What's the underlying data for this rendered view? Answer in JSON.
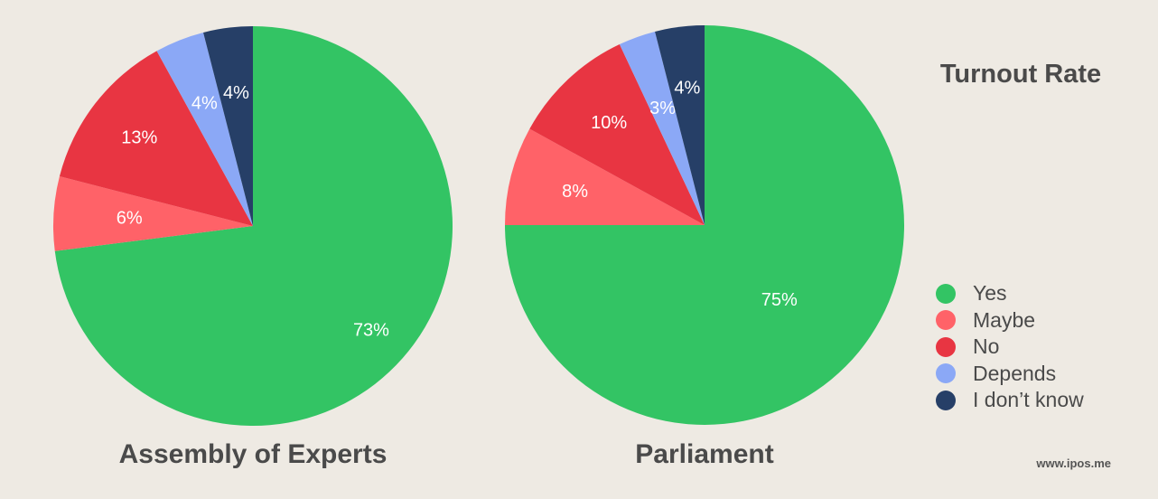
{
  "title": "Turnout Rate",
  "source": "www.ipos.me",
  "chart_data": {
    "type": "pie",
    "title": "Turnout Rate",
    "categories": [
      "Yes",
      "Maybe",
      "No",
      "Depends",
      "I don’t know"
    ],
    "colors": [
      "#33C464",
      "#FF6268",
      "#E83542",
      "#8BA8F6",
      "#263F67"
    ],
    "legend_position": "right",
    "pies": [
      {
        "name": "Assembly of Experts",
        "values": [
          73,
          6,
          13,
          4,
          4
        ],
        "labels": [
          "73%",
          "6%",
          "13%",
          "4%",
          "4%"
        ]
      },
      {
        "name": "Parliament",
        "values": [
          75,
          8,
          10,
          3,
          4
        ],
        "labels": [
          "75%",
          "8%",
          "10%",
          "3%",
          "4%"
        ]
      }
    ]
  }
}
